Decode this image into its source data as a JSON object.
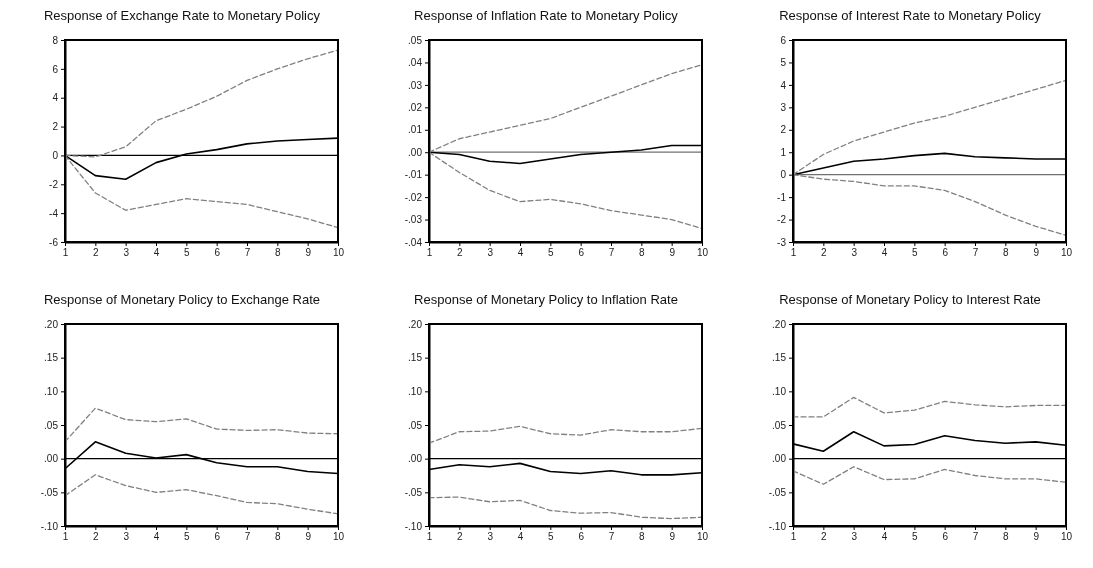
{
  "chart_data": [
    {
      "type": "line",
      "title": "Response of Exchange Rate to Monetary Policy",
      "x": [
        1,
        2,
        3,
        4,
        5,
        6,
        7,
        8,
        9,
        10
      ],
      "xlim": [
        1,
        10
      ],
      "xticks": [
        1,
        2,
        3,
        4,
        5,
        6,
        7,
        8,
        9,
        10
      ],
      "ylim": [
        -6,
        8
      ],
      "yticks": [
        -6,
        -4,
        -2,
        0,
        2,
        4,
        6,
        8
      ],
      "grid": false,
      "marker": "none",
      "ref_lines": [
        {
          "axis": "y",
          "value": 0,
          "color": "#000000"
        }
      ],
      "series": [
        {
          "color": "#000000",
          "line_style": "solid",
          "values": [
            0,
            -1.4,
            -1.65,
            -0.5,
            0.1,
            0.4,
            0.8,
            1.0,
            1.1,
            1.2
          ]
        },
        {
          "color": "#808080",
          "line_style": "dashed",
          "values": [
            0,
            -0.1,
            0.6,
            2.4,
            3.2,
            4.1,
            5.2,
            6.0,
            6.7,
            7.3
          ]
        },
        {
          "color": "#808080",
          "line_style": "dashed",
          "values": [
            0,
            -2.6,
            -3.8,
            -3.4,
            -3.0,
            -3.2,
            -3.4,
            -3.9,
            -4.4,
            -5.0
          ]
        }
      ]
    },
    {
      "type": "line",
      "title": "Response of Inflation Rate to Monetary Policy",
      "x": [
        1,
        2,
        3,
        4,
        5,
        6,
        7,
        8,
        9,
        10
      ],
      "xlim": [
        1,
        10
      ],
      "xticks": [
        1,
        2,
        3,
        4,
        5,
        6,
        7,
        8,
        9,
        10
      ],
      "ylim": [
        -0.04,
        0.05
      ],
      "yticks": [
        {
          "value": -0.04,
          "label": "-.04"
        },
        {
          "value": -0.03,
          "label": "-.03"
        },
        {
          "value": -0.02,
          "label": "-.02"
        },
        {
          "value": -0.01,
          "label": "-.01"
        },
        {
          "value": 0,
          "label": ".00"
        },
        {
          "value": 0.01,
          "label": ".01"
        },
        {
          "value": 0.02,
          "label": ".02"
        },
        {
          "value": 0.03,
          "label": ".03"
        },
        {
          "value": 0.04,
          "label": ".04"
        },
        {
          "value": 0.05,
          "label": ".05"
        }
      ],
      "grid": false,
      "marker": "none",
      "ref_lines": [
        {
          "axis": "y",
          "value": 0,
          "color": "#707070"
        }
      ],
      "series": [
        {
          "color": "#000000",
          "line_style": "solid",
          "values": [
            0,
            -0.001,
            -0.004,
            -0.005,
            -0.003,
            -0.001,
            0,
            0.001,
            0.003,
            0.003
          ]
        },
        {
          "color": "#808080",
          "line_style": "dashed",
          "values": [
            0,
            0.006,
            0.009,
            0.012,
            0.015,
            0.02,
            0.025,
            0.03,
            0.035,
            0.039
          ]
        },
        {
          "color": "#808080",
          "line_style": "dashed",
          "values": [
            0,
            -0.009,
            -0.017,
            -0.022,
            -0.021,
            -0.023,
            -0.026,
            -0.028,
            -0.03,
            -0.034
          ]
        }
      ]
    },
    {
      "type": "line",
      "title": "Response of Interest Rate to Monetary Policy",
      "x": [
        1,
        2,
        3,
        4,
        5,
        6,
        7,
        8,
        9,
        10
      ],
      "xlim": [
        1,
        10
      ],
      "xticks": [
        1,
        2,
        3,
        4,
        5,
        6,
        7,
        8,
        9,
        10
      ],
      "ylim": [
        -3,
        6
      ],
      "yticks": [
        -3,
        -2,
        -1,
        0,
        1,
        2,
        3,
        4,
        5,
        6
      ],
      "grid": false,
      "marker": "none",
      "ref_lines": [
        {
          "axis": "y",
          "value": 0,
          "color": "#707070"
        }
      ],
      "series": [
        {
          "color": "#000000",
          "line_style": "solid",
          "values": [
            0,
            0.3,
            0.6,
            0.7,
            0.85,
            0.95,
            0.8,
            0.75,
            0.7,
            0.7
          ]
        },
        {
          "color": "#808080",
          "line_style": "dashed",
          "values": [
            0,
            0.9,
            1.5,
            1.9,
            2.3,
            2.6,
            3.0,
            3.4,
            3.8,
            4.2
          ]
        },
        {
          "color": "#808080",
          "line_style": "dashed",
          "values": [
            0,
            -0.2,
            -0.3,
            -0.5,
            -0.5,
            -0.7,
            -1.2,
            -1.8,
            -2.3,
            -2.7
          ]
        }
      ]
    },
    {
      "type": "line",
      "title": "Response of Monetary Policy to Exchange Rate",
      "x": [
        1,
        2,
        3,
        4,
        5,
        6,
        7,
        8,
        9,
        10
      ],
      "xlim": [
        1,
        10
      ],
      "xticks": [
        1,
        2,
        3,
        4,
        5,
        6,
        7,
        8,
        9,
        10
      ],
      "ylim": [
        -0.1,
        0.2
      ],
      "yticks": [
        {
          "value": -0.1,
          "label": "-.10"
        },
        {
          "value": -0.05,
          "label": "-.05"
        },
        {
          "value": 0,
          "label": ".00"
        },
        {
          "value": 0.05,
          "label": ".05"
        },
        {
          "value": 0.1,
          "label": ".10"
        },
        {
          "value": 0.15,
          "label": ".15"
        },
        {
          "value": 0.2,
          "label": ".20"
        }
      ],
      "grid": false,
      "marker": "none",
      "ref_lines": [
        {
          "axis": "y",
          "value": 0,
          "color": "#000000"
        }
      ],
      "series": [
        {
          "color": "#000000",
          "line_style": "solid",
          "values": [
            -0.015,
            0.025,
            0.008,
            0.001,
            0.006,
            -0.006,
            -0.012,
            -0.012,
            -0.019,
            -0.022
          ]
        },
        {
          "color": "#808080",
          "line_style": "dashed",
          "values": [
            0.025,
            0.075,
            0.058,
            0.055,
            0.059,
            0.044,
            0.042,
            0.043,
            0.038,
            0.037
          ]
        },
        {
          "color": "#808080",
          "line_style": "dashed",
          "values": [
            -0.055,
            -0.024,
            -0.04,
            -0.05,
            -0.046,
            -0.055,
            -0.065,
            -0.067,
            -0.075,
            -0.082
          ]
        }
      ]
    },
    {
      "type": "line",
      "title": "Response of Monetary Policy to Inflation Rate",
      "x": [
        1,
        2,
        3,
        4,
        5,
        6,
        7,
        8,
        9,
        10
      ],
      "xlim": [
        1,
        10
      ],
      "xticks": [
        1,
        2,
        3,
        4,
        5,
        6,
        7,
        8,
        9,
        10
      ],
      "ylim": [
        -0.1,
        0.2
      ],
      "yticks": [
        {
          "value": -0.1,
          "label": "-.10"
        },
        {
          "value": -0.05,
          "label": "-.05"
        },
        {
          "value": 0,
          "label": ".00"
        },
        {
          "value": 0.05,
          "label": ".05"
        },
        {
          "value": 0.1,
          "label": ".10"
        },
        {
          "value": 0.15,
          "label": ".15"
        },
        {
          "value": 0.2,
          "label": ".20"
        }
      ],
      "grid": false,
      "marker": "none",
      "ref_lines": [
        {
          "axis": "y",
          "value": 0,
          "color": "#000000"
        }
      ],
      "series": [
        {
          "color": "#000000",
          "line_style": "solid",
          "values": [
            -0.016,
            -0.009,
            -0.012,
            -0.007,
            -0.019,
            -0.022,
            -0.018,
            -0.024,
            -0.024,
            -0.021
          ]
        },
        {
          "color": "#808080",
          "line_style": "dashed",
          "values": [
            0.023,
            0.04,
            0.041,
            0.048,
            0.037,
            0.035,
            0.043,
            0.04,
            0.04,
            0.045
          ]
        },
        {
          "color": "#808080",
          "line_style": "dashed",
          "values": [
            -0.058,
            -0.057,
            -0.064,
            -0.062,
            -0.077,
            -0.081,
            -0.08,
            -0.087,
            -0.089,
            -0.087
          ]
        }
      ]
    },
    {
      "type": "line",
      "title": "Response of Monetary Policy to Interest Rate",
      "x": [
        1,
        2,
        3,
        4,
        5,
        6,
        7,
        8,
        9,
        10
      ],
      "xlim": [
        1,
        10
      ],
      "xticks": [
        1,
        2,
        3,
        4,
        5,
        6,
        7,
        8,
        9,
        10
      ],
      "ylim": [
        -0.1,
        0.2
      ],
      "yticks": [
        {
          "value": -0.1,
          "label": "-.10"
        },
        {
          "value": -0.05,
          "label": "-.05"
        },
        {
          "value": 0,
          "label": ".00"
        },
        {
          "value": 0.05,
          "label": ".05"
        },
        {
          "value": 0.1,
          "label": ".10"
        },
        {
          "value": 0.15,
          "label": ".15"
        },
        {
          "value": 0.2,
          "label": ".20"
        }
      ],
      "grid": false,
      "marker": "none",
      "ref_lines": [
        {
          "axis": "y",
          "value": 0,
          "color": "#000000"
        }
      ],
      "series": [
        {
          "color": "#000000",
          "line_style": "solid",
          "values": [
            0.022,
            0.011,
            0.04,
            0.019,
            0.021,
            0.034,
            0.027,
            0.023,
            0.025,
            0.02
          ]
        },
        {
          "color": "#808080",
          "line_style": "dashed",
          "values": [
            0.062,
            0.062,
            0.091,
            0.068,
            0.072,
            0.085,
            0.08,
            0.077,
            0.079,
            0.079
          ]
        },
        {
          "color": "#808080",
          "line_style": "dashed",
          "values": [
            -0.018,
            -0.038,
            -0.012,
            -0.031,
            -0.03,
            -0.016,
            -0.025,
            -0.03,
            -0.03,
            -0.035
          ]
        }
      ]
    }
  ]
}
